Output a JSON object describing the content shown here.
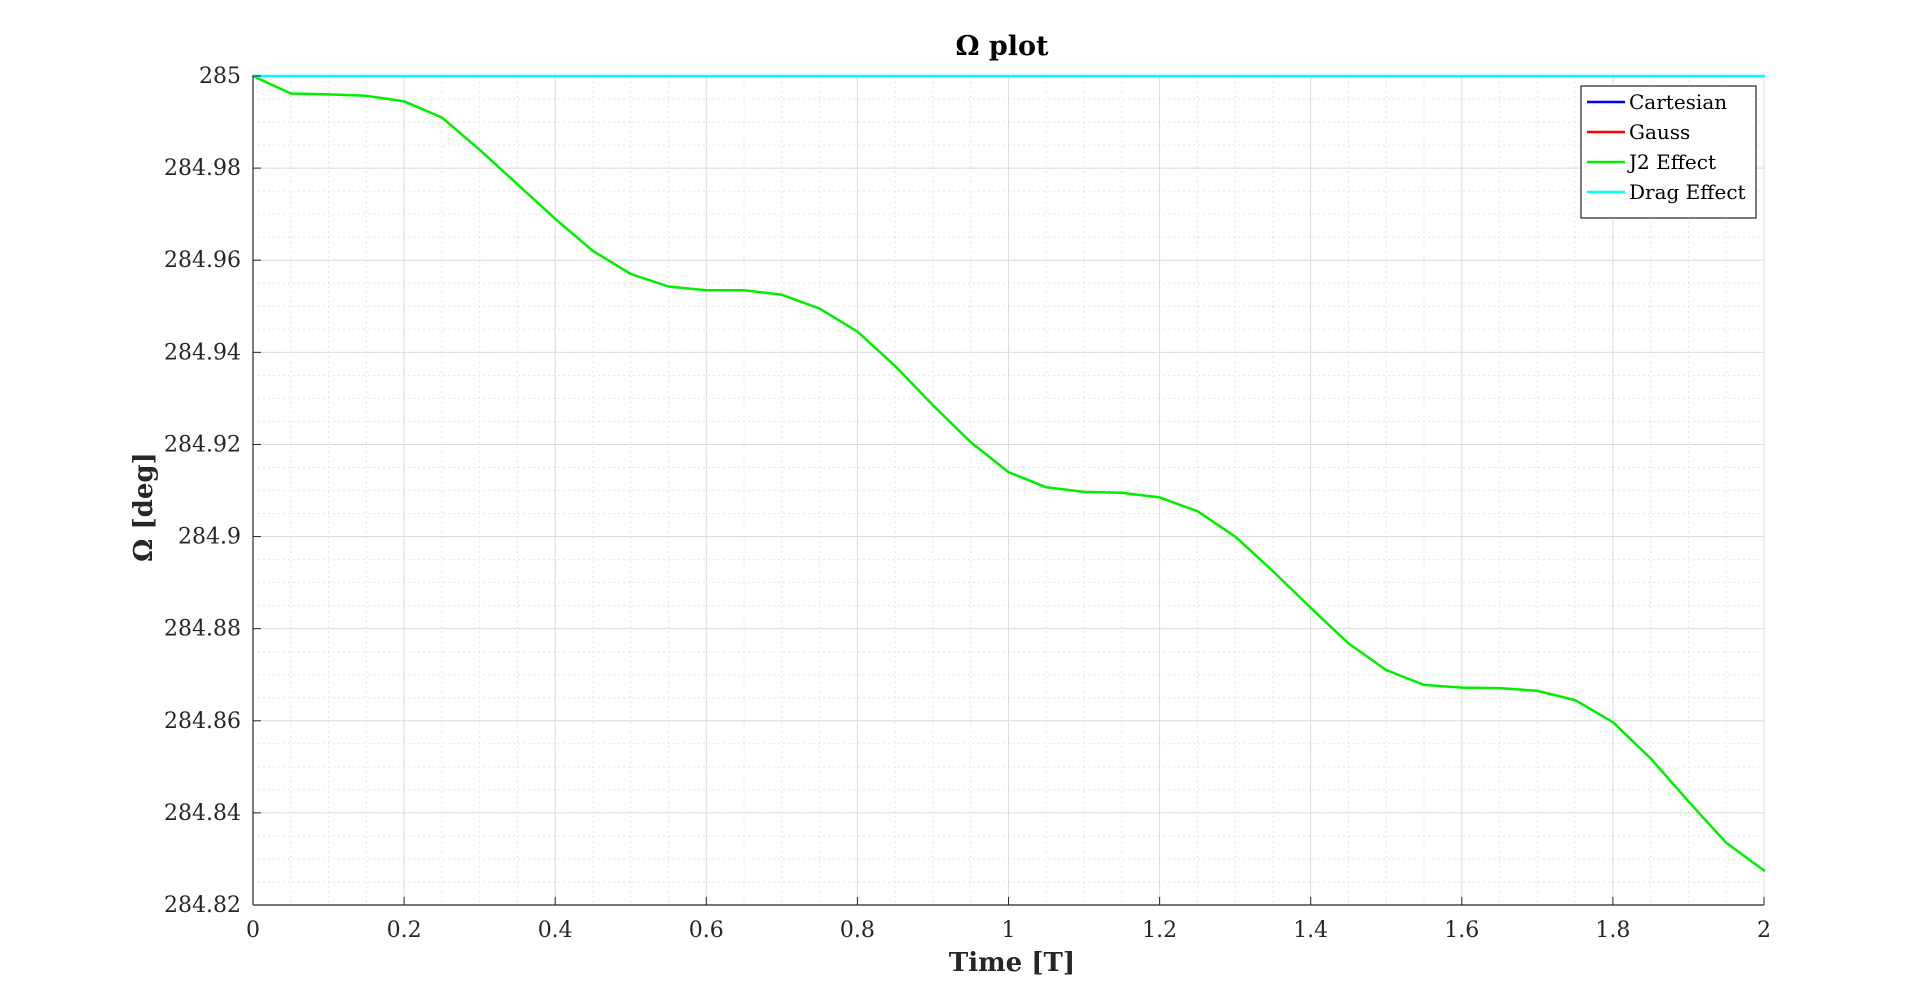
{
  "chart_data": {
    "type": "line",
    "title": "Ω plot",
    "xlabel": "Time [T]",
    "ylabel": "Ω [deg]",
    "xlim": [
      0,
      2
    ],
    "ylim": [
      284.82,
      285
    ],
    "x_ticks": [
      0,
      0.2,
      0.4,
      0.6,
      0.8,
      1,
      1.2,
      1.4,
      1.6,
      1.8,
      2
    ],
    "x_tick_labels": [
      "0",
      "0.2",
      "0.4",
      "0.6",
      "0.8",
      "1",
      "1.2",
      "1.4",
      "1.6",
      "1.8",
      "2"
    ],
    "y_ticks": [
      284.82,
      284.84,
      284.86,
      284.88,
      284.9,
      284.92,
      284.94,
      284.96,
      284.98,
      285
    ],
    "y_tick_labels": [
      "284.82",
      "284.84",
      "284.86",
      "284.88",
      "284.9",
      "284.92",
      "284.94",
      "284.96",
      "284.98",
      "285"
    ],
    "grid": true,
    "minor_grid": true,
    "legend_position": "top-right",
    "series": [
      {
        "name": "Cartesian",
        "color": "#0000ff",
        "x": [],
        "y": []
      },
      {
        "name": "Gauss",
        "color": "#ff0000",
        "x": [],
        "y": []
      },
      {
        "name": "J2 Effect",
        "color": "#00ee00",
        "x": [
          0,
          0.05,
          0.1,
          0.15,
          0.2,
          0.25,
          0.3,
          0.35,
          0.4,
          0.45,
          0.5,
          0.55,
          0.6,
          0.65,
          0.7,
          0.75,
          0.8,
          0.85,
          0.9,
          0.95,
          1.0,
          1.05,
          1.1,
          1.15,
          1.2,
          1.25,
          1.3,
          1.35,
          1.4,
          1.45,
          1.5,
          1.55,
          1.6,
          1.65,
          1.7,
          1.75,
          1.8,
          1.85,
          1.9,
          1.95,
          2.0
        ],
        "y": [
          285.0,
          284.9962,
          284.996,
          284.9957,
          284.9945,
          284.991,
          284.984,
          284.9765,
          284.969,
          284.962,
          284.957,
          284.9543,
          284.9535,
          284.9535,
          284.9525,
          284.9495,
          284.9445,
          284.937,
          284.9285,
          284.9205,
          284.914,
          284.9107,
          284.9097,
          284.9095,
          284.9085,
          284.9055,
          284.9,
          284.8925,
          284.8845,
          284.8768,
          284.871,
          284.8678,
          284.8672,
          284.8671,
          284.8665,
          284.8645,
          284.8597,
          284.8518,
          284.8425,
          284.8335,
          284.8275
        ]
      },
      {
        "name": "Drag Effect",
        "color": "#00ffff",
        "x": [
          0,
          2
        ],
        "y": [
          285,
          285
        ]
      }
    ]
  }
}
